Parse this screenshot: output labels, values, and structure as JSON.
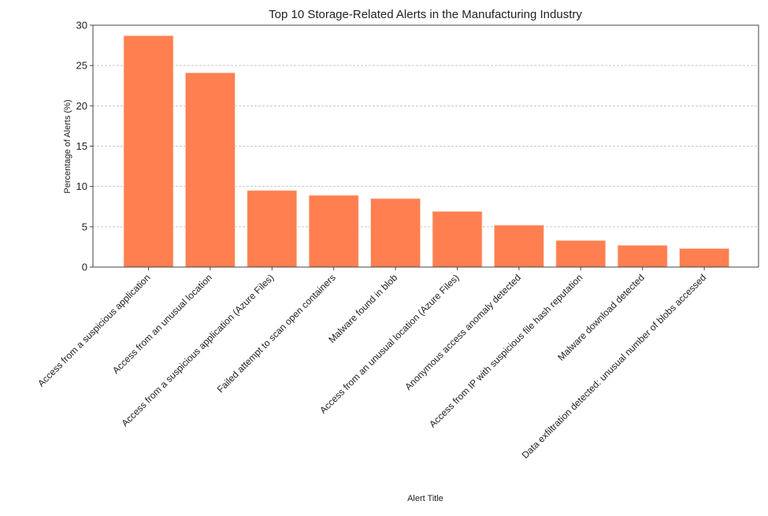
{
  "chart_data": {
    "type": "bar",
    "title": "Top 10 Storage-Related Alerts in the Manufacturing Industry",
    "xlabel": "Alert Title",
    "ylabel": "Percentage of Alerts (%)",
    "ylim": [
      0,
      30
    ],
    "yticks": [
      0,
      5,
      10,
      15,
      20,
      25,
      30
    ],
    "grid": "horizontal dashed",
    "bar_color": "#FF7F50",
    "categories": [
      "Access from a suspicious application",
      "Access from an unusual location",
      "Access from a suspicious application (Azure Files)",
      "Failed attempt to scan open containers",
      "Malware found in blob",
      "Access from an unusual location (Azure Files)",
      "Anonymous access anomaly detected",
      "Access from IP with suspicious file hash reputation",
      "Malware download detected",
      "Data exfiltration detected: unusual number of blobs accessed"
    ],
    "values": [
      28.7,
      24.1,
      9.5,
      8.9,
      8.5,
      6.9,
      5.2,
      3.3,
      2.7,
      2.3
    ]
  }
}
